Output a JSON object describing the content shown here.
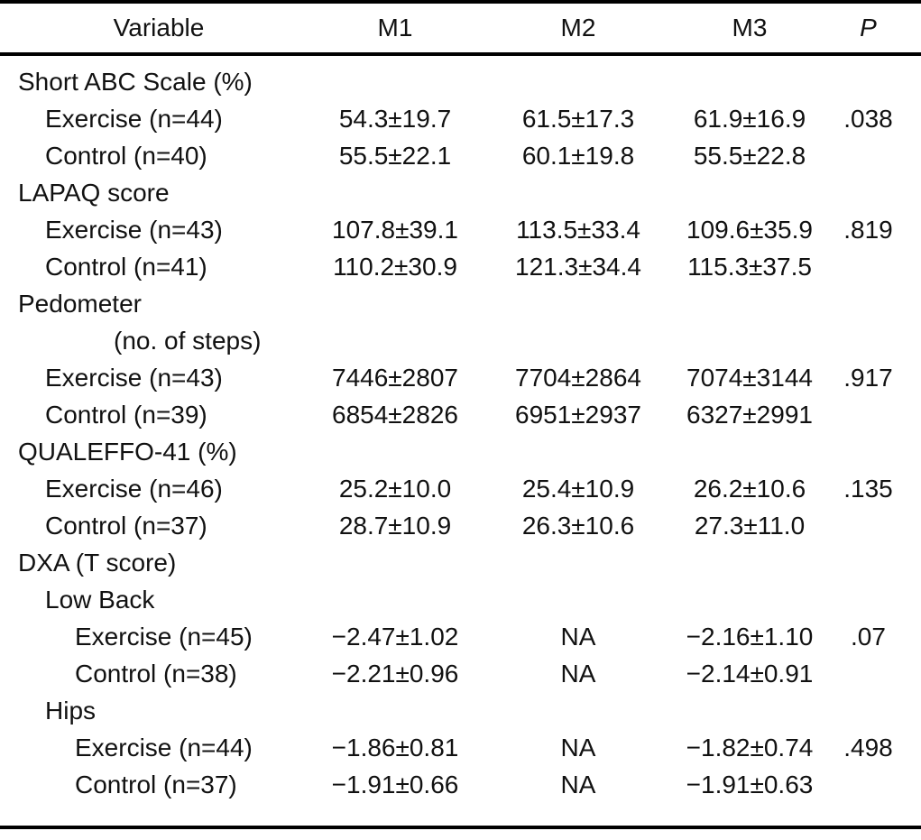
{
  "table": {
    "headers": {
      "variable": "Variable",
      "m1": "M1",
      "m2": "M2",
      "m3": "M3",
      "p": "P"
    },
    "rows": [
      {
        "label": "Short ABC Scale (%)",
        "indent": 0,
        "m1": "",
        "m2": "",
        "m3": "",
        "p": ""
      },
      {
        "label": "Exercise (n=44)",
        "indent": 1,
        "m1": "54.3±19.7",
        "m2": "61.5±17.3",
        "m3": "61.9±16.9",
        "p": ".038"
      },
      {
        "label": "Control (n=40)",
        "indent": 1,
        "m1": "55.5±22.1",
        "m2": "60.1±19.8",
        "m3": "55.5±22.8",
        "p": ""
      },
      {
        "label": "LAPAQ score",
        "indent": 0,
        "m1": "",
        "m2": "",
        "m3": "",
        "p": ""
      },
      {
        "label": "Exercise (n=43)",
        "indent": 1,
        "m1": "107.8±39.1",
        "m2": "113.5±33.4",
        "m3": "109.6±35.9",
        "p": ".819"
      },
      {
        "label": "Control (n=41)",
        "indent": 1,
        "m1": "110.2±30.9",
        "m2": "121.3±34.4",
        "m3": "115.3±37.5",
        "p": ""
      },
      {
        "label": "Pedometer",
        "indent": 0,
        "m1": "",
        "m2": "",
        "m3": "",
        "p": ""
      },
      {
        "label": "(no. of steps)",
        "indent": 3,
        "m1": "",
        "m2": "",
        "m3": "",
        "p": ""
      },
      {
        "label": "Exercise (n=43)",
        "indent": 1,
        "m1": "7446±2807",
        "m2": "7704±2864",
        "m3": "7074±3144",
        "p": ".917"
      },
      {
        "label": "Control (n=39)",
        "indent": 1,
        "m1": "6854±2826",
        "m2": "6951±2937",
        "m3": "6327±2991",
        "p": ""
      },
      {
        "label": "QUALEFFO-41 (%)",
        "indent": 0,
        "m1": "",
        "m2": "",
        "m3": "",
        "p": ""
      },
      {
        "label": "Exercise (n=46)",
        "indent": 1,
        "m1": "25.2±10.0",
        "m2": "25.4±10.9",
        "m3": "26.2±10.6",
        "p": ".135"
      },
      {
        "label": "Control (n=37)",
        "indent": 1,
        "m1": "28.7±10.9",
        "m2": "26.3±10.6",
        "m3": "27.3±11.0",
        "p": ""
      },
      {
        "label": "DXA (T score)",
        "indent": 0,
        "m1": "",
        "m2": "",
        "m3": "",
        "p": ""
      },
      {
        "label": "Low Back",
        "indent": 1,
        "m1": "",
        "m2": "",
        "m3": "",
        "p": ""
      },
      {
        "label": "Exercise (n=45)",
        "indent": 2,
        "m1": "−2.47±1.02",
        "m2": "NA",
        "m3": "−2.16±1.10",
        "p": ".07"
      },
      {
        "label": "Control (n=38)",
        "indent": 2,
        "m1": "−2.21±0.96",
        "m2": "NA",
        "m3": "−2.14±0.91",
        "p": ""
      },
      {
        "label": "Hips",
        "indent": 1,
        "m1": "",
        "m2": "",
        "m3": "",
        "p": ""
      },
      {
        "label": "Exercise (n=44)",
        "indent": 2,
        "m1": "−1.86±0.81",
        "m2": "NA",
        "m3": "−1.82±0.74",
        "p": ".498"
      },
      {
        "label": "Control (n=37)",
        "indent": 2,
        "m1": "−1.91±0.66",
        "m2": "NA",
        "m3": "−1.91±0.63",
        "p": ""
      }
    ]
  },
  "colors": {
    "text": "#111111",
    "background": "#ffffff",
    "rule": "#000000"
  }
}
